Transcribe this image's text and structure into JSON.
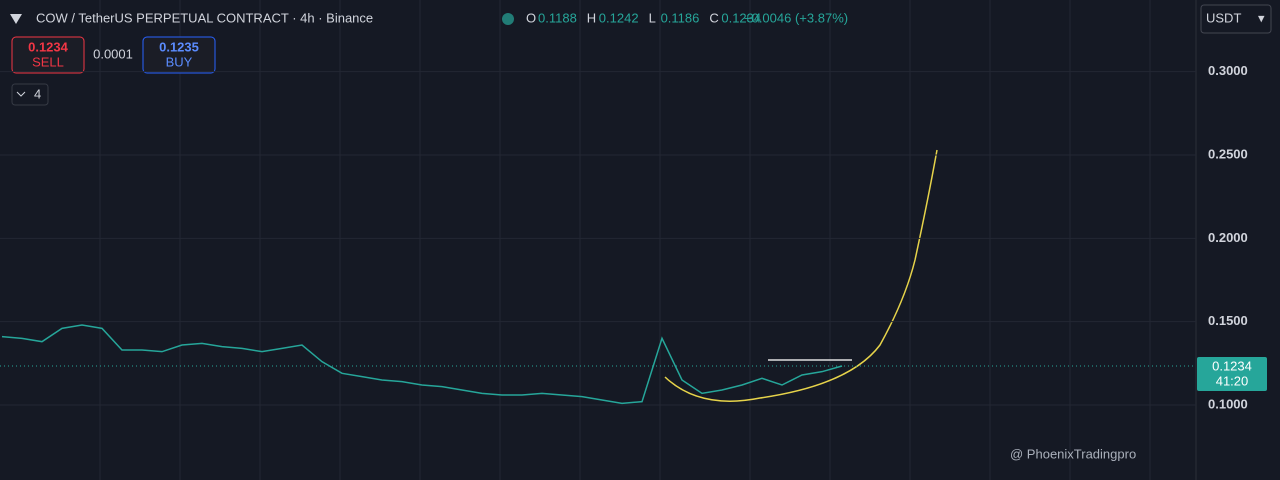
{
  "header": {
    "title": "COW / TetherUS PERPETUAL CONTRACT · 4h · Binance",
    "ohlc": [
      {
        "key": "O",
        "value": "0.1188"
      },
      {
        "key": "H",
        "value": "0.1242"
      },
      {
        "key": "L",
        "value": "0.1186"
      },
      {
        "key": "C",
        "value": "0.1234"
      }
    ],
    "change": "+0.0046 (+3.87%)"
  },
  "trade": {
    "sell_price": "0.1234",
    "sell": "SELL",
    "spread": "0.0001",
    "buy_price": "0.1235",
    "buy": "BUY",
    "indicators": "4"
  },
  "currency": "USDT",
  "price_label": {
    "price": "0.1234",
    "countdown": "41:20"
  },
  "watermark": "@ PhoenixTradingpro",
  "chart_data": {
    "type": "line",
    "categories": [
      null,
      null,
      null,
      null,
      null,
      null,
      null,
      null,
      null,
      null,
      null,
      null,
      null,
      null,
      null,
      null,
      null,
      null,
      null,
      null,
      null,
      null,
      null,
      null,
      null,
      null,
      null,
      null,
      null,
      null,
      null,
      null,
      null,
      null,
      null,
      null,
      null,
      null,
      null,
      null,
      null,
      null,
      null
    ],
    "series": [
      {
        "color": "#26a69a",
        "values": [
          0.141,
          0.14,
          0.138,
          0.146,
          0.148,
          0.146,
          0.133,
          0.133,
          0.132,
          0.136,
          0.137,
          0.135,
          0.134,
          0.132,
          0.134,
          0.136,
          0.126,
          0.119,
          0.117,
          0.115,
          0.114,
          0.112,
          0.111,
          0.109,
          0.107,
          0.106,
          0.106,
          0.107,
          0.106,
          0.105,
          0.103,
          0.101,
          0.102,
          0.14,
          0.115,
          0.107,
          0.109,
          0.112,
          0.116,
          0.112,
          0.118,
          0.12,
          0.1234
        ]
      }
    ],
    "ylim": [
      0.055,
      0.343
    ],
    "yticks": [
      {
        "value": 0.1,
        "label": "0.1000"
      },
      {
        "value": 0.15,
        "label": "0.1500"
      },
      {
        "value": 0.2,
        "label": "0.2000"
      },
      {
        "value": 0.25,
        "label": "0.2500"
      },
      {
        "value": 0.3,
        "label": "0.3000"
      }
    ],
    "grid": true
  }
}
